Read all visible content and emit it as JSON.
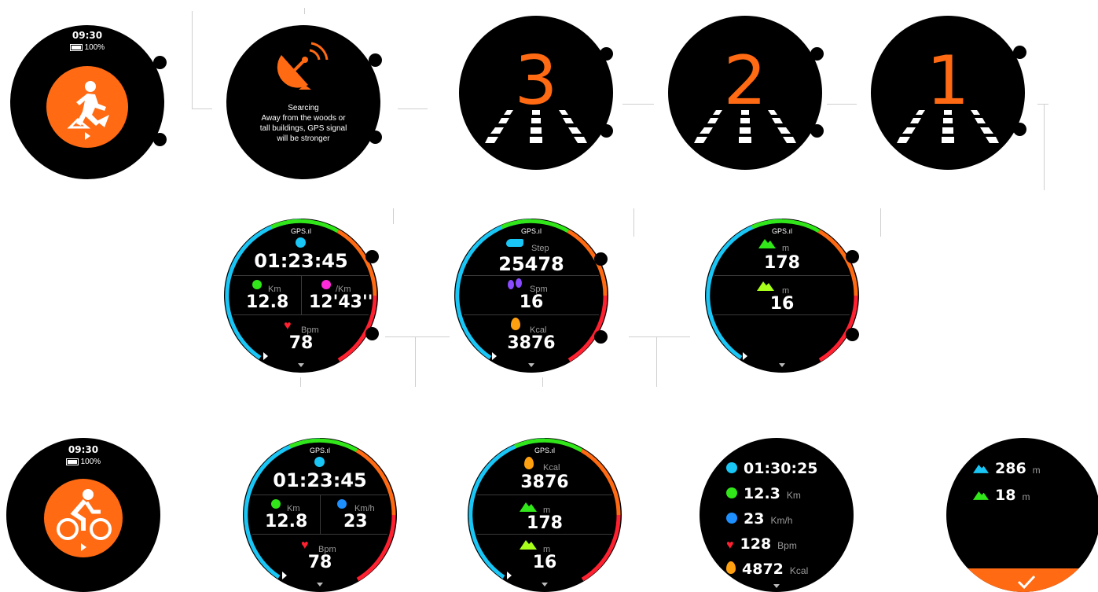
{
  "colors": {
    "orange": "#ff6a13",
    "cyan": "#19c6f5",
    "green": "#31e619",
    "blue": "#1e8fff",
    "red": "#ff2030",
    "magenta": "#ff2bd8",
    "purple": "#8a4bff",
    "lime": "#a8ff1a"
  },
  "run_start": {
    "time": "09:30",
    "battery": "100%",
    "icon": "running-icon"
  },
  "searching": {
    "title": "Searcing",
    "line1": "Away from the woods or",
    "line2": "tall buildings, GPS signal",
    "line3": "will be stronger",
    "icon": "satellite-dish-icon"
  },
  "countdown": [
    "3",
    "2",
    "1"
  ],
  "gps_label": "GPS.ıl",
  "run_screen1": {
    "time": "01:23:45",
    "km_unit": "Km",
    "km": "12.8",
    "pace_unit": "/Km",
    "pace": "12'43''",
    "bpm_unit": "Bpm",
    "bpm": "78"
  },
  "run_screen2": {
    "step_unit": "Step",
    "step": "25478",
    "spm_unit": "Spm",
    "spm": "16",
    "kcal_unit": "Kcal",
    "kcal": "3876"
  },
  "run_screen3": {
    "up_unit": "m",
    "up": "178",
    "down_unit": "m",
    "down": "16"
  },
  "bike_start": {
    "time": "09:30",
    "battery": "100%",
    "icon": "cycling-icon"
  },
  "bike_screen1": {
    "time": "01:23:45",
    "km_unit": "Km",
    "km": "12.8",
    "speed_unit": "Km/h",
    "speed": "23",
    "bpm_unit": "Bpm",
    "bpm": "78"
  },
  "bike_screen2": {
    "kcal_unit": "Kcal",
    "kcal": "3876",
    "up_unit": "m",
    "up": "178",
    "down_unit": "m",
    "down": "16"
  },
  "summary1": {
    "time": "01:30:25",
    "km": "12.3",
    "km_unit": "Km",
    "speed": "23",
    "speed_unit": "Km/h",
    "bpm": "128",
    "bpm_unit": "Bpm",
    "kcal": "4872",
    "kcal_unit": "Kcal"
  },
  "summary2": {
    "up": "286",
    "up_unit": "m",
    "down": "18",
    "down_unit": "m"
  }
}
